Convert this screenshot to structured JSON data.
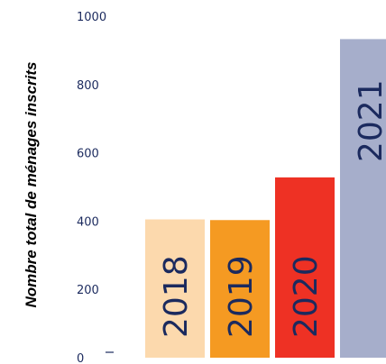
{
  "chart_data": {
    "type": "bar",
    "ylabel": "Nombre total de ménages inscrits",
    "ylim": [
      0,
      1000
    ],
    "yticks": [
      0,
      200,
      400,
      600,
      800,
      1000
    ],
    "categories": [
      "2018",
      "2019",
      "2020",
      "2021"
    ],
    "values": [
      405,
      403,
      528,
      933
    ],
    "colors": [
      "#fcd9ad",
      "#f59a22",
      "#ee3124",
      "#a6aecb"
    ],
    "label_color": "#1b2a5e",
    "axis_color": "#1b2a5e",
    "grid": false
  }
}
